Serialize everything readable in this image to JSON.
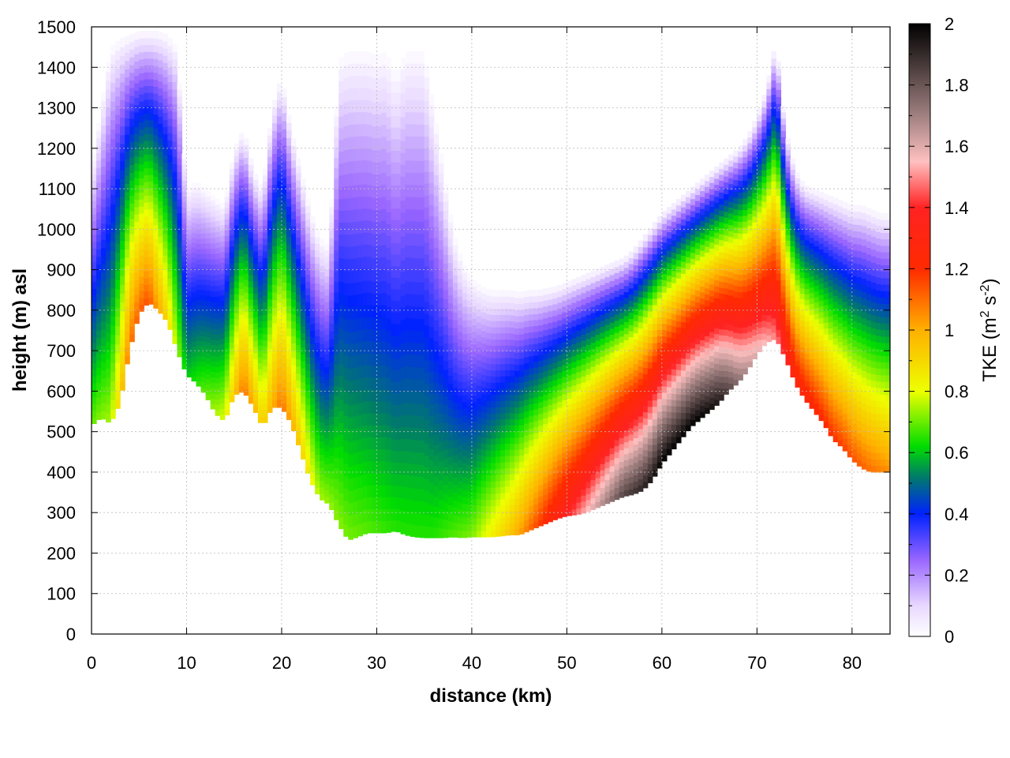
{
  "chart_data": {
    "type": "heatmap",
    "title": "",
    "xlabel": "distance (km)",
    "ylabel": "height (m) asl",
    "xlim": [
      0,
      84
    ],
    "ylim": [
      0,
      1500
    ],
    "xticks": [
      0,
      10,
      20,
      30,
      40,
      50,
      60,
      70,
      80
    ],
    "yticks": [
      0,
      100,
      200,
      300,
      400,
      500,
      600,
      700,
      800,
      900,
      1000,
      1100,
      1200,
      1300,
      1400,
      1500
    ],
    "grid": true,
    "colorbar": {
      "label": "TKE (m",
      "label_sup1": "2",
      "label_mid": " s",
      "label_sup2": "-2",
      "label_end": ")",
      "range": [
        0,
        2
      ],
      "ticks": [
        0,
        0.2,
        0.4,
        0.6,
        0.8,
        1,
        1.2,
        1.4,
        1.6,
        1.8,
        2
      ],
      "colors": [
        {
          "v": 0.0,
          "c": "#ffffff"
        },
        {
          "v": 0.1,
          "c": "#e8d8ff"
        },
        {
          "v": 0.25,
          "c": "#9966ff"
        },
        {
          "v": 0.4,
          "c": "#0022ff"
        },
        {
          "v": 0.52,
          "c": "#007a6a"
        },
        {
          "v": 0.62,
          "c": "#00dd00"
        },
        {
          "v": 0.8,
          "c": "#eeff00"
        },
        {
          "v": 1.0,
          "c": "#ffb000"
        },
        {
          "v": 1.2,
          "c": "#ff2a00"
        },
        {
          "v": 1.4,
          "c": "#ff2222"
        },
        {
          "v": 1.55,
          "c": "#ffc0c0"
        },
        {
          "v": 1.7,
          "c": "#a08080"
        },
        {
          "v": 2.0,
          "c": "#000000"
        }
      ]
    },
    "terrain": {
      "distance_km": [
        0,
        1,
        2,
        3,
        4,
        5,
        6,
        7,
        8,
        9,
        10,
        11,
        12,
        13,
        14,
        15,
        16,
        17,
        18,
        19,
        20,
        21,
        22,
        23,
        24,
        25,
        26,
        27,
        28,
        29,
        30,
        31,
        32,
        33,
        34,
        35,
        36,
        37,
        38,
        39,
        40,
        41,
        42,
        43,
        44,
        45,
        46,
        47,
        48,
        49,
        50,
        51,
        52,
        53,
        54,
        55,
        56,
        57,
        58,
        59,
        60,
        61,
        62,
        63,
        64,
        65,
        66,
        67,
        68,
        69,
        70,
        71,
        72,
        73,
        74,
        75,
        76,
        77,
        78,
        79,
        80,
        81,
        82,
        83,
        84
      ],
      "height_m": [
        515,
        535,
        520,
        570,
        700,
        790,
        820,
        800,
        770,
        700,
        640,
        620,
        590,
        545,
        525,
        590,
        600,
        560,
        510,
        560,
        560,
        520,
        450,
        380,
        335,
        320,
        270,
        232,
        240,
        250,
        250,
        250,
        255,
        245,
        240,
        238,
        238,
        238,
        240,
        238,
        240,
        240,
        240,
        242,
        245,
        245,
        255,
        265,
        275,
        285,
        292,
        295,
        300,
        310,
        320,
        330,
        340,
        345,
        355,
        380,
        420,
        450,
        480,
        510,
        530,
        550,
        570,
        600,
        620,
        650,
        690,
        720,
        730,
        680,
        620,
        580,
        550,
        520,
        480,
        460,
        430,
        410,
        400,
        400,
        400
      ]
    },
    "boundary_layer_top": {
      "distance_km": [
        0,
        1,
        2,
        3,
        4,
        5,
        6,
        7,
        8,
        9,
        10,
        11,
        12,
        13,
        14,
        15,
        16,
        17,
        18,
        19,
        20,
        21,
        22,
        23,
        24,
        25,
        26,
        27,
        28,
        29,
        30,
        31,
        32,
        33,
        34,
        35,
        36,
        37,
        38,
        39,
        40,
        41,
        42,
        43,
        44,
        45,
        46,
        47,
        48,
        49,
        50,
        51,
        52,
        53,
        54,
        55,
        56,
        57,
        58,
        59,
        60,
        61,
        62,
        63,
        64,
        65,
        66,
        67,
        68,
        69,
        70,
        71,
        72,
        73,
        74,
        75,
        76,
        77,
        78,
        79,
        80,
        81,
        82,
        83,
        84
      ],
      "height_m": [
        1150,
        1300,
        1450,
        1470,
        1480,
        1490,
        1490,
        1490,
        1480,
        1450,
        1100,
        1120,
        1100,
        1080,
        1060,
        1200,
        1250,
        1150,
        1100,
        1300,
        1380,
        1250,
        1150,
        1050,
        980,
        960,
        1420,
        1440,
        1440,
        1440,
        1430,
        1440,
        1380,
        1440,
        1440,
        1440,
        1300,
        1150,
        1000,
        920,
        880,
        860,
        850,
        850,
        850,
        845,
        850,
        850,
        855,
        860,
        870,
        880,
        890,
        900,
        910,
        920,
        930,
        950,
        980,
        1010,
        1040,
        1060,
        1080,
        1100,
        1120,
        1140,
        1160,
        1180,
        1200,
        1230,
        1280,
        1350,
        1470,
        1250,
        1150,
        1110,
        1100,
        1090,
        1080,
        1070,
        1060,
        1060,
        1050,
        1040,
        1040
      ]
    },
    "tke_max_near_ground_m2s2": {
      "distance_km": [
        0,
        2,
        4,
        6,
        8,
        10,
        14,
        16,
        18,
        20,
        24,
        28,
        32,
        36,
        40,
        44,
        48,
        52,
        56,
        60,
        64,
        66,
        68,
        70,
        72,
        74,
        76,
        78,
        80,
        82,
        84
      ],
      "value": [
        0.7,
        0.75,
        1.1,
        1.15,
        0.9,
        0.6,
        0.8,
        1.1,
        0.9,
        1.1,
        0.75,
        0.7,
        0.65,
        0.65,
        0.72,
        0.95,
        1.25,
        1.55,
        1.85,
        2.0,
        2.0,
        1.95,
        1.75,
        1.6,
        1.5,
        1.3,
        1.25,
        1.2,
        1.15,
        1.1,
        1.05
      ]
    }
  }
}
